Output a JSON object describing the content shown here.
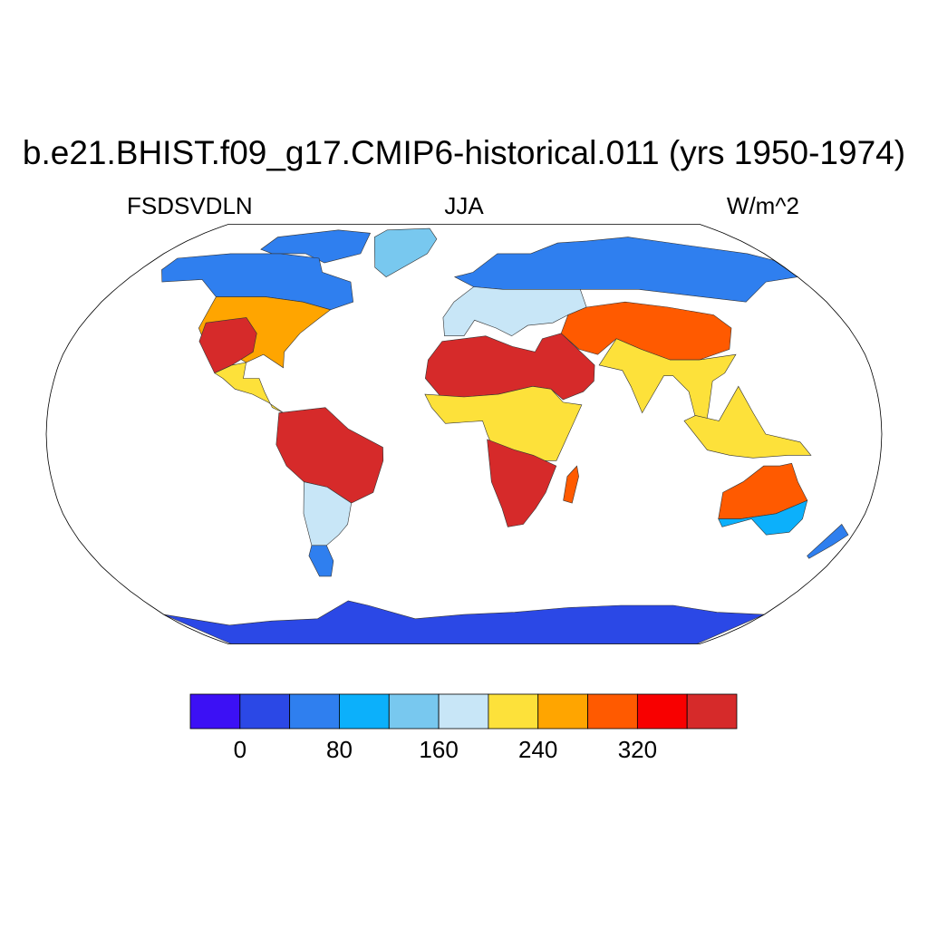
{
  "title": "b.e21.BHIST.f09_g17.CMIP6-historical.011 (yrs 1950-1974)",
  "left_string": "FSDSVDLN",
  "center_string": "JJA",
  "right_string": "W/m^2",
  "projection": "robinson",
  "ocean_color": "#ffffff",
  "colorbar": {
    "levels": [
      0,
      40,
      80,
      120,
      160,
      200,
      240,
      280,
      320,
      360
    ],
    "colors": [
      "#3c10f5",
      "#2b48e6",
      "#2f7fef",
      "#0cb0fb",
      "#78c8ef",
      "#c8e6f7",
      "#fde13a",
      "#ffa500",
      "#ff5a00",
      "#f80000",
      "#d62a2a"
    ],
    "labels": [
      "0",
      "80",
      "160",
      "240",
      "320"
    ],
    "label_levels": [
      0,
      80,
      160,
      240,
      320
    ]
  },
  "regions": [
    {
      "name": "greenland",
      "value": 140
    },
    {
      "name": "arctic-canada",
      "value": 40
    },
    {
      "name": "canada",
      "value": 60
    },
    {
      "name": "north-america-midlat",
      "value": 250
    },
    {
      "name": "us-southwest",
      "value": 370
    },
    {
      "name": "mexico-central-america",
      "value": 220
    },
    {
      "name": "amazon",
      "value": 370
    },
    {
      "name": "south-america-south",
      "value": 180
    },
    {
      "name": "patagonia",
      "value": 40
    },
    {
      "name": "northern-eurasia",
      "value": 50
    },
    {
      "name": "europe-midlat",
      "value": 170
    },
    {
      "name": "sahara-arabia",
      "value": 370
    },
    {
      "name": "central-asia",
      "value": 300
    },
    {
      "name": "india-southeast-asia",
      "value": 230
    },
    {
      "name": "africa-tropics",
      "value": 200
    },
    {
      "name": "southern-africa",
      "value": 370
    },
    {
      "name": "madagascar",
      "value": 300
    },
    {
      "name": "maritime-continent",
      "value": 230
    },
    {
      "name": "australia",
      "value": 300
    },
    {
      "name": "australia-south",
      "value": 100
    },
    {
      "name": "new-zealand",
      "value": 40
    },
    {
      "name": "antarctica",
      "value": 20
    }
  ]
}
